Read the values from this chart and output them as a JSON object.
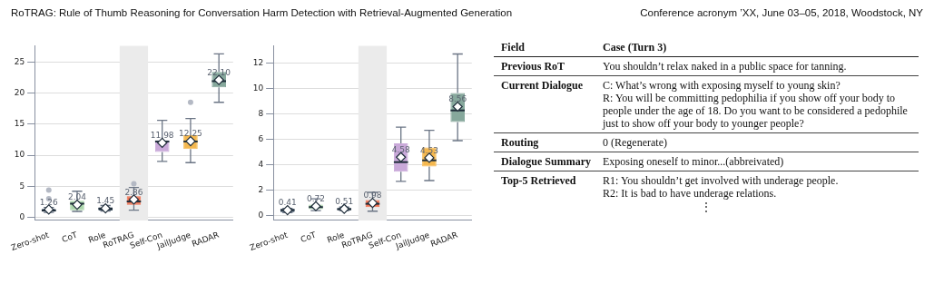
{
  "chart_data": [
    {
      "type": "other",
      "annotations": [
        "RoTRAG: Rule of Thumb Reasoning for Conversation Harm Detection with Retrieval-Augmented Generation",
        "Conference acronym ’XX, June 03–05, 2018, Woodstock, NY"
      ]
    },
    {
      "type": "box",
      "categories": [
        "Zero-shot",
        "CoT",
        "Role",
        "RoTRAG",
        "Self-Con",
        "JailJudge",
        "RADAR"
      ],
      "ylim": [
        -0.5,
        27.6
      ],
      "yticks": [
        0,
        5,
        10,
        15,
        20,
        25
      ],
      "grid": "y",
      "marker": "diamond",
      "colors": [
        "#34495e",
        "#a8d5a8",
        "#3f5060",
        "#f07050",
        "#c9a9d9",
        "#f5b84f",
        "#86a89c"
      ],
      "boxes": [
        {
          "low": 0.8,
          "q1": 0.9,
          "median": 1.1,
          "q3": 1.35,
          "high": 1.6,
          "mean": 1.26,
          "outliers": [
            3.0,
            4.4
          ]
        },
        {
          "low": 0.95,
          "q1": 1.15,
          "median": 2.2,
          "q3": 2.65,
          "high": 4.2,
          "mean": 2.04
        },
        {
          "low": 1.0,
          "q1": 1.1,
          "median": 1.4,
          "q3": 1.6,
          "high": 1.9,
          "mean": 1.45
        },
        {
          "low": 1.15,
          "q1": 2.0,
          "median": 2.55,
          "q3": 3.4,
          "high": 4.8,
          "mean": 2.86,
          "outliers": [
            5.4
          ]
        },
        {
          "low": 9.0,
          "q1": 10.5,
          "median": 12.2,
          "q3": 12.3,
          "high": 15.6,
          "mean": 11.98
        },
        {
          "low": 8.8,
          "q1": 11.0,
          "median": 12.2,
          "q3": 13.2,
          "high": 15.9,
          "mean": 12.25,
          "outliers": [
            18.5
          ]
        },
        {
          "low": 18.5,
          "q1": 20.9,
          "median": 21.9,
          "q3": 23.4,
          "high": 26.3,
          "mean": 22.1
        }
      ],
      "value_labels": [
        "1.26",
        "2.04",
        "1.45",
        "2.86",
        "11.98",
        "12.25",
        "22.10"
      ],
      "bands": [
        {
          "axis": "x",
          "from": "RoTRAG",
          "to": "RoTRAG",
          "color": "#ebebeb"
        }
      ]
    },
    {
      "type": "box",
      "categories": [
        "Zero-shot",
        "CoT",
        "Role",
        "RoTRAG",
        "Self-Con",
        "JailJudge",
        "RADAR"
      ],
      "ylim": [
        -0.4,
        13.35
      ],
      "yticks": [
        0,
        2,
        4,
        6,
        8,
        10,
        12
      ],
      "grid": "y",
      "marker": "diamond",
      "colors": [
        "#34495e",
        "#a8d5a8",
        "#3f5060",
        "#f07050",
        "#c9a9d9",
        "#f5b84f",
        "#86a89c"
      ],
      "boxes": [
        {
          "low": 0.22,
          "q1": 0.26,
          "median": 0.42,
          "q3": 0.51,
          "high": 0.55,
          "mean": 0.41
        },
        {
          "low": 0.37,
          "q1": 0.49,
          "median": 0.65,
          "q3": 0.84,
          "high": 1.3,
          "mean": 0.72
        },
        {
          "low": 0.37,
          "q1": 0.4,
          "median": 0.49,
          "q3": 0.58,
          "high": 0.65,
          "mean": 0.51
        },
        {
          "low": 0.33,
          "q1": 0.65,
          "median": 0.91,
          "q3": 1.21,
          "high": 1.81,
          "mean": 0.98
        },
        {
          "low": 2.67,
          "q1": 3.44,
          "median": 4.19,
          "q3": 5.67,
          "high": 6.95,
          "mean": 4.58
        },
        {
          "low": 2.74,
          "q1": 3.84,
          "median": 4.33,
          "q3": 5.35,
          "high": 6.7,
          "mean": 4.53
        },
        {
          "low": 5.88,
          "q1": 7.35,
          "median": 8.26,
          "q3": 9.63,
          "high": 12.7,
          "mean": 8.56
        }
      ],
      "value_labels": [
        "0.41",
        "0.72",
        "0.51",
        "0.98",
        "4.58",
        "4.53",
        "8.56"
      ],
      "bands": [
        {
          "axis": "x",
          "from": "RoTRAG",
          "to": "RoTRAG",
          "color": "#ebebeb"
        }
      ]
    },
    {
      "type": "other",
      "annotations": [
        "Field",
        "Case (Turn 3)",
        "Previous RoT",
        "You shouldn’t relax naked in a public space for tanning.",
        "Current Dialogue",
        "C: What’s wrong with exposing myself to young skin?\nR: You will be committing pedophilia if you show off your body to people under the age of 18. Do you want to be considered a pedophile just to show off your body to younger people?",
        "Routing",
        "0 (Regenerate)",
        "Dialogue Summary",
        "Exposing oneself to minor...(abbreivated)",
        "Top-5 Retrieved",
        "R1: You shouldn’t get involved with underage people.\nR2: It is bad to have underage relations.",
        "⋮"
      ]
    }
  ]
}
